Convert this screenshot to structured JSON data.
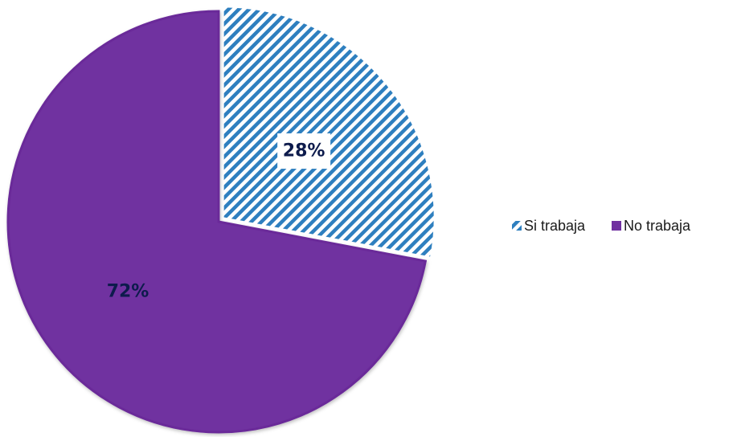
{
  "chart_data": {
    "type": "pie",
    "title": "",
    "categories": [
      "Si trabaja",
      "No trabaja"
    ],
    "values": [
      28,
      72
    ],
    "labels": [
      "28%",
      "72%"
    ],
    "colors": {
      "Si trabaja": "#2e7fbf",
      "No trabaja": "#7030a0"
    },
    "fill_patterns": {
      "Si trabaja": "diagonal-stripes",
      "No trabaja": "solid"
    },
    "label_color": "#0d1b4c",
    "start_angle": "12 o'clock",
    "direction": "clockwise",
    "legend": {
      "position": "right",
      "entries": [
        "Si trabaja",
        "No trabaja"
      ]
    }
  }
}
